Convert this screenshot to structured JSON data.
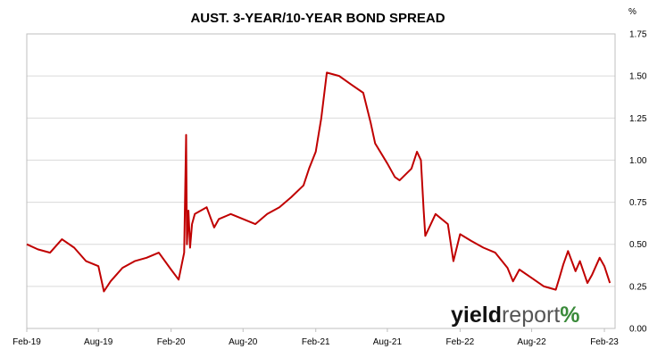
{
  "chart_data": {
    "type": "line",
    "title": "AUST. 3-YEAR/10-YEAR BOND SPREAD",
    "y_unit": "%",
    "ylim": [
      0.0,
      1.75
    ],
    "y_ticks": [
      "0.00",
      "0.25",
      "0.50",
      "0.75",
      "1.00",
      "1.25",
      "1.50",
      "1.75"
    ],
    "x_ticks": [
      "Feb-19",
      "Aug-19",
      "Feb-20",
      "Aug-20",
      "Feb-21",
      "Aug-21",
      "Feb-22",
      "Aug-22",
      "Feb-23"
    ],
    "grid": "horizontal",
    "legend": "none",
    "series": [
      {
        "color": "#c00000",
        "x": [
          "2019-02-01",
          "2019-03-01",
          "2019-04-01",
          "2019-05-01",
          "2019-06-01",
          "2019-07-01",
          "2019-08-01",
          "2019-08-15",
          "2019-09-01",
          "2019-10-01",
          "2019-11-01",
          "2019-12-01",
          "2020-01-01",
          "2020-02-01",
          "2020-02-20",
          "2020-03-05",
          "2020-03-10",
          "2020-03-12",
          "2020-03-16",
          "2020-03-20",
          "2020-03-25",
          "2020-04-01",
          "2020-05-01",
          "2020-05-20",
          "2020-06-01",
          "2020-07-01",
          "2020-08-01",
          "2020-09-01",
          "2020-10-01",
          "2020-11-01",
          "2020-12-01",
          "2021-01-01",
          "2021-01-15",
          "2021-02-01",
          "2021-02-15",
          "2021-03-01",
          "2021-04-01",
          "2021-05-01",
          "2021-06-01",
          "2021-06-20",
          "2021-07-01",
          "2021-08-01",
          "2021-08-20",
          "2021-09-01",
          "2021-10-01",
          "2021-10-15",
          "2021-10-25",
          "2021-11-01",
          "2021-11-05",
          "2021-12-01",
          "2022-01-01",
          "2022-01-15",
          "2022-02-01",
          "2022-03-01",
          "2022-04-01",
          "2022-05-01",
          "2022-06-01",
          "2022-06-15",
          "2022-07-01",
          "2022-08-01",
          "2022-09-01",
          "2022-10-01",
          "2022-10-10",
          "2022-10-20",
          "2022-11-01",
          "2022-11-20",
          "2022-12-01",
          "2022-12-20",
          "2023-01-01",
          "2023-01-20",
          "2023-02-01",
          "2023-02-15"
        ],
        "y": [
          0.5,
          0.47,
          0.45,
          0.53,
          0.48,
          0.4,
          0.37,
          0.22,
          0.28,
          0.36,
          0.4,
          0.42,
          0.45,
          0.35,
          0.29,
          0.45,
          1.15,
          0.5,
          0.7,
          0.48,
          0.62,
          0.68,
          0.72,
          0.6,
          0.65,
          0.68,
          0.65,
          0.62,
          0.68,
          0.72,
          0.78,
          0.85,
          0.95,
          1.05,
          1.25,
          1.52,
          1.5,
          1.45,
          1.4,
          1.22,
          1.1,
          0.98,
          0.9,
          0.88,
          0.95,
          1.05,
          1.0,
          0.7,
          0.55,
          0.68,
          0.62,
          0.4,
          0.56,
          0.52,
          0.48,
          0.45,
          0.36,
          0.28,
          0.35,
          0.3,
          0.25,
          0.23,
          0.3,
          0.38,
          0.46,
          0.34,
          0.4,
          0.27,
          0.32,
          0.42,
          0.37,
          0.27
        ]
      }
    ],
    "logo": {
      "part1": "yield",
      "part2": "report",
      "mark": "%"
    }
  }
}
